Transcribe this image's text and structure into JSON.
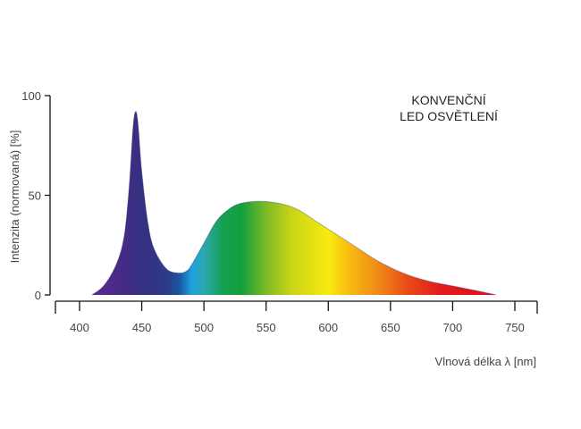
{
  "chart_data": {
    "type": "area",
    "title_lines": [
      "KONVENČNÍ",
      "LED OSVĚTLENÍ"
    ],
    "xlabel": "Vlnová délka λ [nm]",
    "ylabel": "Intenzita (normovaná) [%]",
    "xlim": [
      380,
      770
    ],
    "ylim": [
      0,
      100
    ],
    "xticks": [
      400,
      450,
      500,
      550,
      600,
      650,
      700,
      750
    ],
    "xtick_labels": [
      "400",
      "450",
      "500",
      "550",
      "600",
      "650",
      "700",
      "750"
    ],
    "yticks": [
      0,
      50,
      100
    ],
    "ytick_labels": [
      "0",
      "50",
      "100"
    ],
    "grid": false,
    "series": [
      {
        "name": "Konvenční LED osvětlení",
        "x": [
          410,
          420,
          430,
          436,
          440,
          443,
          445,
          447,
          450,
          455,
          460,
          470,
          480,
          486,
          490,
          500,
          510,
          520,
          530,
          545,
          560,
          575,
          590,
          600,
          620,
          640,
          660,
          680,
          700,
          720,
          735
        ],
        "y": [
          0,
          5,
          16,
          30,
          55,
          84,
          92,
          86,
          62,
          36,
          23,
          13,
          11,
          12,
          15,
          26,
          37,
          43,
          46,
          47,
          46,
          43,
          37,
          33,
          25,
          17,
          11,
          7,
          4.5,
          2,
          0
        ]
      }
    ],
    "fill": "visible spectrum gradient",
    "spectrum_stops": [
      {
        "nm": 405,
        "color": "#5a2d8c"
      },
      {
        "nm": 430,
        "color": "#4a2a88"
      },
      {
        "nm": 450,
        "color": "#35307f"
      },
      {
        "nm": 470,
        "color": "#2d3a88"
      },
      {
        "nm": 480,
        "color": "#1a55a0"
      },
      {
        "nm": 490,
        "color": "#1ea0e0"
      },
      {
        "nm": 500,
        "color": "#2aa8b0"
      },
      {
        "nm": 515,
        "color": "#15a050"
      },
      {
        "nm": 530,
        "color": "#12a03c"
      },
      {
        "nm": 550,
        "color": "#7cba28"
      },
      {
        "nm": 570,
        "color": "#c8d416"
      },
      {
        "nm": 600,
        "color": "#f8ea10"
      },
      {
        "nm": 615,
        "color": "#f8c010"
      },
      {
        "nm": 640,
        "color": "#f08a18"
      },
      {
        "nm": 665,
        "color": "#e84818"
      },
      {
        "nm": 690,
        "color": "#e41a1c"
      },
      {
        "nm": 735,
        "color": "#e0101c"
      }
    ],
    "outline_color": "#2a2a70"
  }
}
